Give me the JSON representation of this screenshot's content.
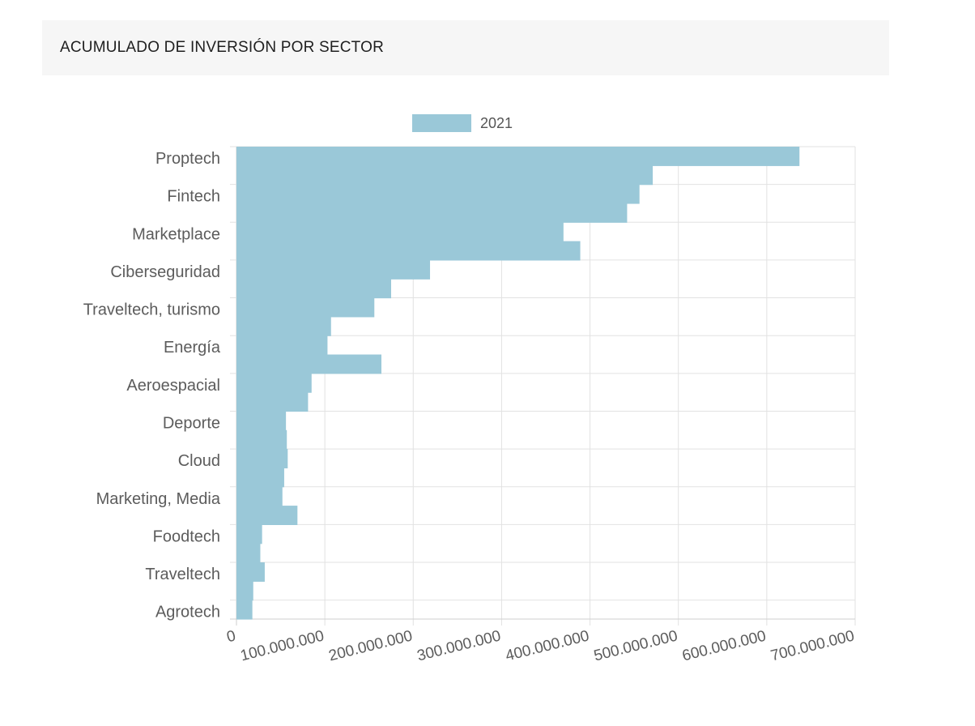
{
  "header": {
    "title": "ACUMULADO DE INVERSIÓN POR SECTOR"
  },
  "colors": {
    "bar": "#9ac8d8",
    "grid": "#e2e2e2",
    "axis": "#cfcfcf",
    "header_bg": "#f6f6f6"
  },
  "chart_data": {
    "type": "bar",
    "orientation": "horizontal",
    "legend": {
      "position": "top",
      "entries": [
        "2021"
      ]
    },
    "categories": [
      "Proptech",
      "",
      "Fintech",
      "",
      "Marketplace",
      "",
      "Ciberseguridad",
      "",
      "Traveltech, turismo",
      "",
      "Energía",
      "",
      "Aeroespacial",
      "",
      "Deporte",
      "",
      "Cloud",
      "",
      "Marketing, Media",
      "",
      "Foodtech",
      "",
      "Traveltech",
      "",
      "Agrotech"
    ],
    "series": [
      {
        "name": "2021",
        "values": [
          637000000,
          471000000,
          456000000,
          442000000,
          370000000,
          389000000,
          219000000,
          175000000,
          156000000,
          107000000,
          103000000,
          164000000,
          85000000,
          81000000,
          56000000,
          57000000,
          58000000,
          54000000,
          52000000,
          69000000,
          29000000,
          27000000,
          32000000,
          19000000,
          18000000
        ]
      }
    ],
    "xlim": [
      0,
      700000000
    ],
    "xticks": [
      0,
      100000000,
      200000000,
      300000000,
      400000000,
      500000000,
      600000000,
      700000000
    ],
    "xtick_labels": [
      "0",
      "100.000.000",
      "200.000.000",
      "300.000.000",
      "400.000.000",
      "500.000.000",
      "600.000.000",
      "700.000.000"
    ],
    "grid": true,
    "title": "",
    "xlabel": "",
    "ylabel": ""
  }
}
